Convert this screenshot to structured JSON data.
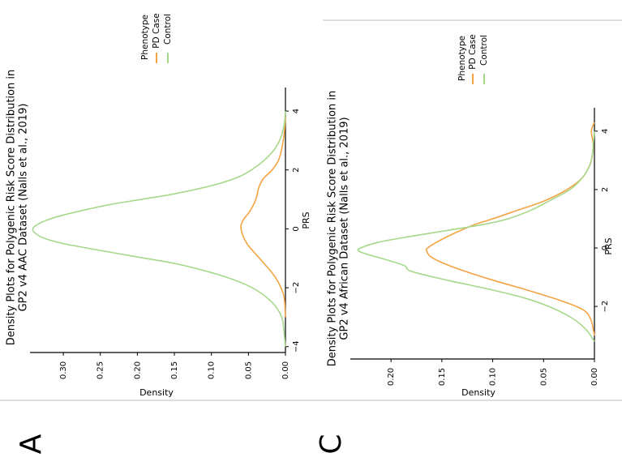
{
  "panels": {
    "a": {
      "letter": "A"
    },
    "c": {
      "letter": "C"
    }
  },
  "chart_data": [
    {
      "type": "line",
      "title": "Density Plots for Polygenic Risk Score Distribution in GP2 v4 AAC Dataset (Nalls et al., 2019)",
      "title_lines": [
        "Density Plots for Polygenic Risk Score Distribution in",
        "GP2 v4 AAC Dataset (Nalls et al., 2019)"
      ],
      "xlabel": "PRS",
      "ylabel": "Density",
      "xlim": [
        -4.2,
        4.8
      ],
      "ylim": [
        0,
        0.345
      ],
      "xticks": [
        -4,
        -2,
        0,
        2,
        4
      ],
      "yticks": [
        0.0,
        0.05,
        0.1,
        0.15,
        0.2,
        0.25,
        0.3
      ],
      "xtick_labels": [
        "−4",
        "−2",
        "0",
        "2",
        "4"
      ],
      "ytick_labels": [
        "0.00",
        "0.05",
        "0.10",
        "0.15",
        "0.20",
        "0.25",
        "0.30"
      ],
      "legend": {
        "title": "Phenotype",
        "position": "upper-right"
      },
      "series": [
        {
          "name": "PD Case",
          "color": "#f5a342",
          "x": [
            -3.0,
            -2.5,
            -2.2,
            -1.8,
            -1.5,
            -1.0,
            -0.5,
            0.0,
            0.3,
            0.6,
            1.0,
            1.4,
            1.7,
            2.0,
            2.3,
            2.6,
            3.0,
            3.4,
            3.8
          ],
          "y": [
            0.0,
            0.001,
            0.003,
            0.01,
            0.018,
            0.035,
            0.052,
            0.06,
            0.057,
            0.048,
            0.04,
            0.036,
            0.03,
            0.018,
            0.01,
            0.006,
            0.003,
            0.001,
            0.0
          ]
        },
        {
          "name": "Control",
          "color": "#a6d88a",
          "x": [
            -4.0,
            -3.5,
            -3.0,
            -2.5,
            -2.0,
            -1.6,
            -1.2,
            -1.0,
            -0.8,
            -0.5,
            -0.3,
            -0.1,
            0.0,
            0.1,
            0.3,
            0.5,
            0.8,
            1.0,
            1.2,
            1.5,
            1.8,
            2.2,
            2.6,
            3.0,
            3.5,
            4.0
          ],
          "y": [
            0.0,
            0.002,
            0.005,
            0.018,
            0.045,
            0.085,
            0.145,
            0.19,
            0.235,
            0.3,
            0.328,
            0.34,
            0.341,
            0.338,
            0.322,
            0.295,
            0.242,
            0.195,
            0.148,
            0.095,
            0.06,
            0.035,
            0.018,
            0.008,
            0.002,
            0.0
          ]
        }
      ]
    },
    {
      "type": "line",
      "title": "Density Plots for Polygenic Risk Score Distribution in GP2 v4 African Dataset (Nalls et al., 2019)",
      "title_lines": [
        "Density Plots for Polygenic Risk Score Distribution in",
        "GP2 v4 African Dataset (Nalls et al., 2019)"
      ],
      "xlabel": "PRS",
      "ylabel": "Density",
      "xlim": [
        -3.8,
        4.8
      ],
      "ylim": [
        0,
        0.24
      ],
      "xticks": [
        -2,
        0,
        2,
        4
      ],
      "yticks": [
        0.0,
        0.05,
        0.1,
        0.15,
        0.2
      ],
      "xtick_labels": [
        "−2",
        "0",
        "2",
        "4"
      ],
      "ytick_labels": [
        "0.00",
        "0.05",
        "0.10",
        "0.15",
        "0.20"
      ],
      "legend": {
        "title": "Phenotype",
        "position": "upper-right"
      },
      "series": [
        {
          "name": "PD Case",
          "color": "#f5a342",
          "x": [
            -3.0,
            -2.5,
            -2.2,
            -2.0,
            -1.7,
            -1.4,
            -1.1,
            -0.8,
            -0.5,
            -0.3,
            -0.1,
            0.0,
            0.2,
            0.5,
            0.8,
            1.0,
            1.3,
            1.6,
            2.0,
            2.4,
            2.8,
            3.0,
            3.5,
            4.0,
            4.3
          ],
          "y": [
            0.0,
            0.003,
            0.008,
            0.018,
            0.042,
            0.07,
            0.1,
            0.127,
            0.15,
            0.161,
            0.165,
            0.164,
            0.155,
            0.138,
            0.118,
            0.1,
            0.075,
            0.05,
            0.027,
            0.012,
            0.005,
            0.003,
            0.001,
            0.003,
            0.0
          ]
        },
        {
          "name": "Control",
          "color": "#a6d88a",
          "x": [
            -3.2,
            -2.8,
            -2.4,
            -2.0,
            -1.7,
            -1.4,
            -1.1,
            -0.8,
            -0.6,
            -0.4,
            -0.2,
            -0.1,
            0.0,
            0.2,
            0.4,
            0.6,
            0.8,
            1.0,
            1.3,
            1.6,
            2.0,
            2.4,
            2.8,
            3.2,
            3.6,
            4.0
          ],
          "y": [
            0.0,
            0.008,
            0.022,
            0.045,
            0.07,
            0.105,
            0.145,
            0.18,
            0.187,
            0.205,
            0.225,
            0.232,
            0.23,
            0.212,
            0.18,
            0.145,
            0.11,
            0.085,
            0.062,
            0.045,
            0.024,
            0.012,
            0.005,
            0.002,
            0.001,
            0.0
          ]
        }
      ]
    }
  ]
}
